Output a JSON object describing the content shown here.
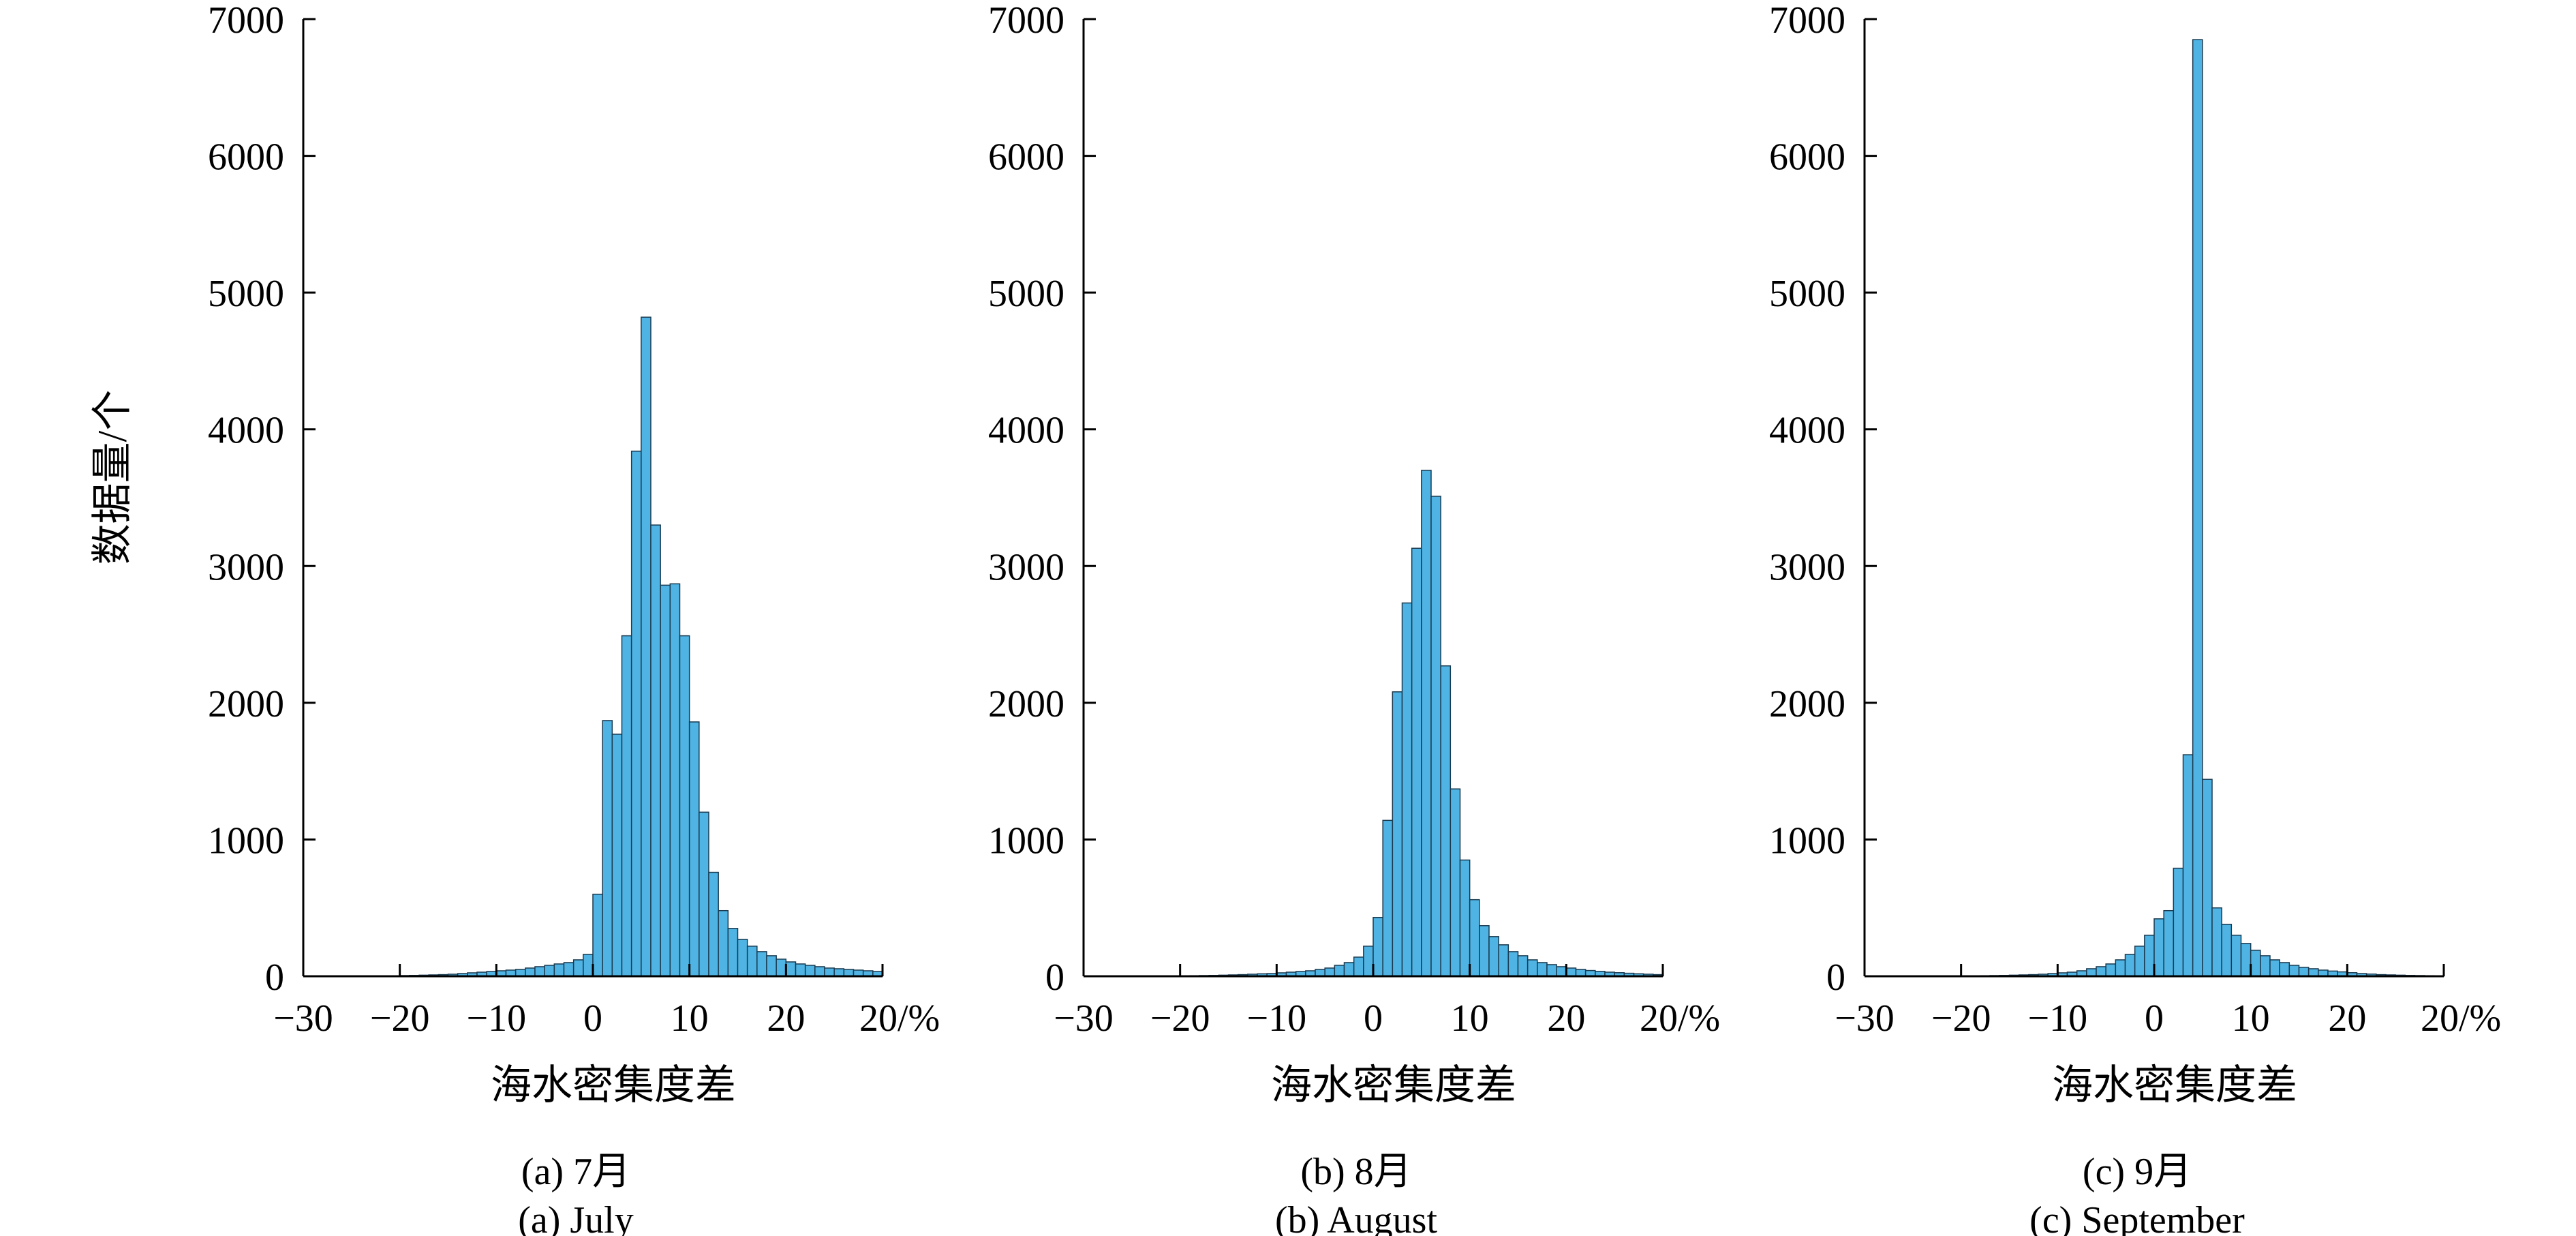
{
  "figure": {
    "ylabel": "数据量/个",
    "bar_color": "#4fb4e3",
    "bar_stroke": "#1a3a50"
  },
  "chart_data": [
    {
      "type": "bar",
      "panel_label_cn": "(a) 7月",
      "panel_label_en": "(a) July",
      "xlabel": "海水密集度差",
      "xlim": [
        -30,
        30
      ],
      "ylim": [
        0,
        7000
      ],
      "x_tick_labels": [
        "−30",
        "−20",
        "−10",
        "0",
        "10",
        "20",
        "20/%"
      ],
      "y_tick_labels": [
        "0",
        "1000",
        "2000",
        "3000",
        "4000",
        "5000",
        "6000",
        "7000"
      ],
      "bin_start": -30,
      "bin_width": 1,
      "values": [
        0,
        0,
        0,
        0,
        0,
        0,
        0,
        0,
        0,
        0,
        5,
        6,
        8,
        10,
        12,
        15,
        20,
        25,
        30,
        35,
        40,
        45,
        50,
        60,
        70,
        80,
        90,
        100,
        120,
        160,
        600,
        1870,
        1770,
        2490,
        3840,
        4820,
        3300,
        2860,
        2870,
        2490,
        1860,
        1200,
        760,
        480,
        350,
        270,
        220,
        180,
        150,
        125,
        105,
        90,
        80,
        70,
        60,
        55,
        50,
        45,
        40,
        35
      ]
    },
    {
      "type": "bar",
      "panel_label_cn": "(b) 8月",
      "panel_label_en": "(b) August",
      "xlabel": "海水密集度差",
      "xlim": [
        -30,
        30
      ],
      "ylim": [
        0,
        7000
      ],
      "x_tick_labels": [
        "−30",
        "−20",
        "−10",
        "0",
        "10",
        "20",
        "20/%"
      ],
      "y_tick_labels": [
        "0",
        "1000",
        "2000",
        "3000",
        "4000",
        "5000",
        "6000",
        "7000"
      ],
      "bin_start": -30,
      "bin_width": 1,
      "values": [
        0,
        0,
        0,
        0,
        0,
        0,
        0,
        0,
        0,
        0,
        3,
        4,
        5,
        6,
        8,
        10,
        12,
        15,
        18,
        20,
        25,
        30,
        35,
        40,
        50,
        60,
        80,
        100,
        140,
        220,
        430,
        1140,
        2080,
        2730,
        3130,
        3700,
        3510,
        2270,
        1370,
        850,
        560,
        370,
        290,
        230,
        180,
        150,
        120,
        100,
        85,
        70,
        60,
        50,
        42,
        36,
        30,
        26,
        22,
        18,
        15,
        12
      ]
    },
    {
      "type": "bar",
      "panel_label_cn": "(c) 9月",
      "panel_label_en": "(c) September",
      "xlabel": "海水密集度差",
      "xlim": [
        -30,
        30
      ],
      "ylim": [
        0,
        7000
      ],
      "x_tick_labels": [
        "−30",
        "−20",
        "−10",
        "0",
        "10",
        "20",
        "20/%"
      ],
      "y_tick_labels": [
        "0",
        "1000",
        "2000",
        "3000",
        "4000",
        "5000",
        "6000",
        "7000"
      ],
      "bin_start": -30,
      "bin_width": 1,
      "values": [
        0,
        0,
        0,
        0,
        0,
        0,
        0,
        0,
        0,
        0,
        2,
        3,
        4,
        5,
        6,
        8,
        10,
        12,
        15,
        20,
        25,
        30,
        40,
        55,
        70,
        90,
        120,
        160,
        220,
        300,
        420,
        480,
        790,
        1620,
        6850,
        1440,
        500,
        380,
        300,
        240,
        190,
        150,
        120,
        100,
        80,
        65,
        55,
        45,
        38,
        32,
        26,
        20,
        16,
        12,
        10,
        8,
        6,
        5,
        4,
        3
      ]
    }
  ]
}
